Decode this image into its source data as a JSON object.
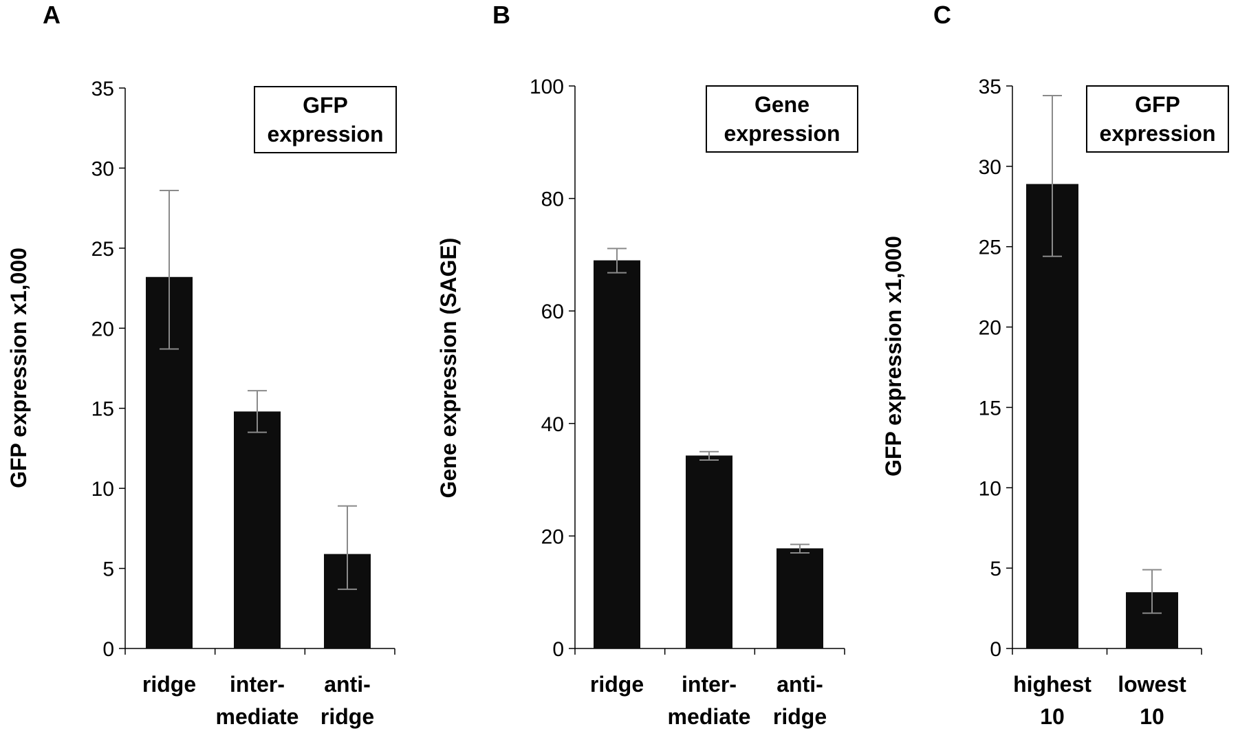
{
  "chart_data": [
    {
      "panel": "A",
      "type": "bar",
      "categories": [
        [
          "ridge"
        ],
        [
          "inter-",
          "mediate"
        ],
        [
          "anti-",
          "ridge"
        ]
      ],
      "values": [
        23.2,
        14.8,
        5.9
      ],
      "errors": [
        [
          18.7,
          28.6
        ],
        [
          13.5,
          16.1
        ],
        [
          3.7,
          8.9
        ]
      ],
      "ylabel": "GFP expression x1,000",
      "legend": [
        "GFP",
        "expression"
      ],
      "ylim": [
        0,
        35
      ],
      "yticks": [
        0,
        5,
        10,
        15,
        20,
        25,
        30,
        35
      ]
    },
    {
      "panel": "B",
      "type": "bar",
      "categories": [
        [
          "ridge"
        ],
        [
          "inter-",
          "mediate"
        ],
        [
          "anti-",
          "ridge"
        ]
      ],
      "values": [
        69,
        34.3,
        17.8
      ],
      "errors": [
        [
          66.8,
          71.1
        ],
        [
          33.5,
          35
        ],
        [
          17,
          18.5
        ]
      ],
      "ylabel": "Gene expression (SAGE)",
      "legend": [
        "Gene",
        "expression"
      ],
      "ylim": [
        0,
        100
      ],
      "yticks": [
        0,
        20,
        40,
        60,
        80,
        100
      ]
    },
    {
      "panel": "C",
      "type": "bar",
      "categories": [
        [
          "highest",
          "10"
        ],
        [
          "lowest",
          "10"
        ]
      ],
      "values": [
        28.9,
        3.5
      ],
      "errors": [
        [
          24.4,
          34.4
        ],
        [
          2.2,
          4.9
        ]
      ],
      "ylabel": "GFP expression x1,000",
      "legend": [
        "GFP",
        "expression"
      ],
      "ylim": [
        0,
        35
      ],
      "yticks": [
        0,
        5,
        10,
        15,
        20,
        25,
        30,
        35
      ]
    }
  ]
}
